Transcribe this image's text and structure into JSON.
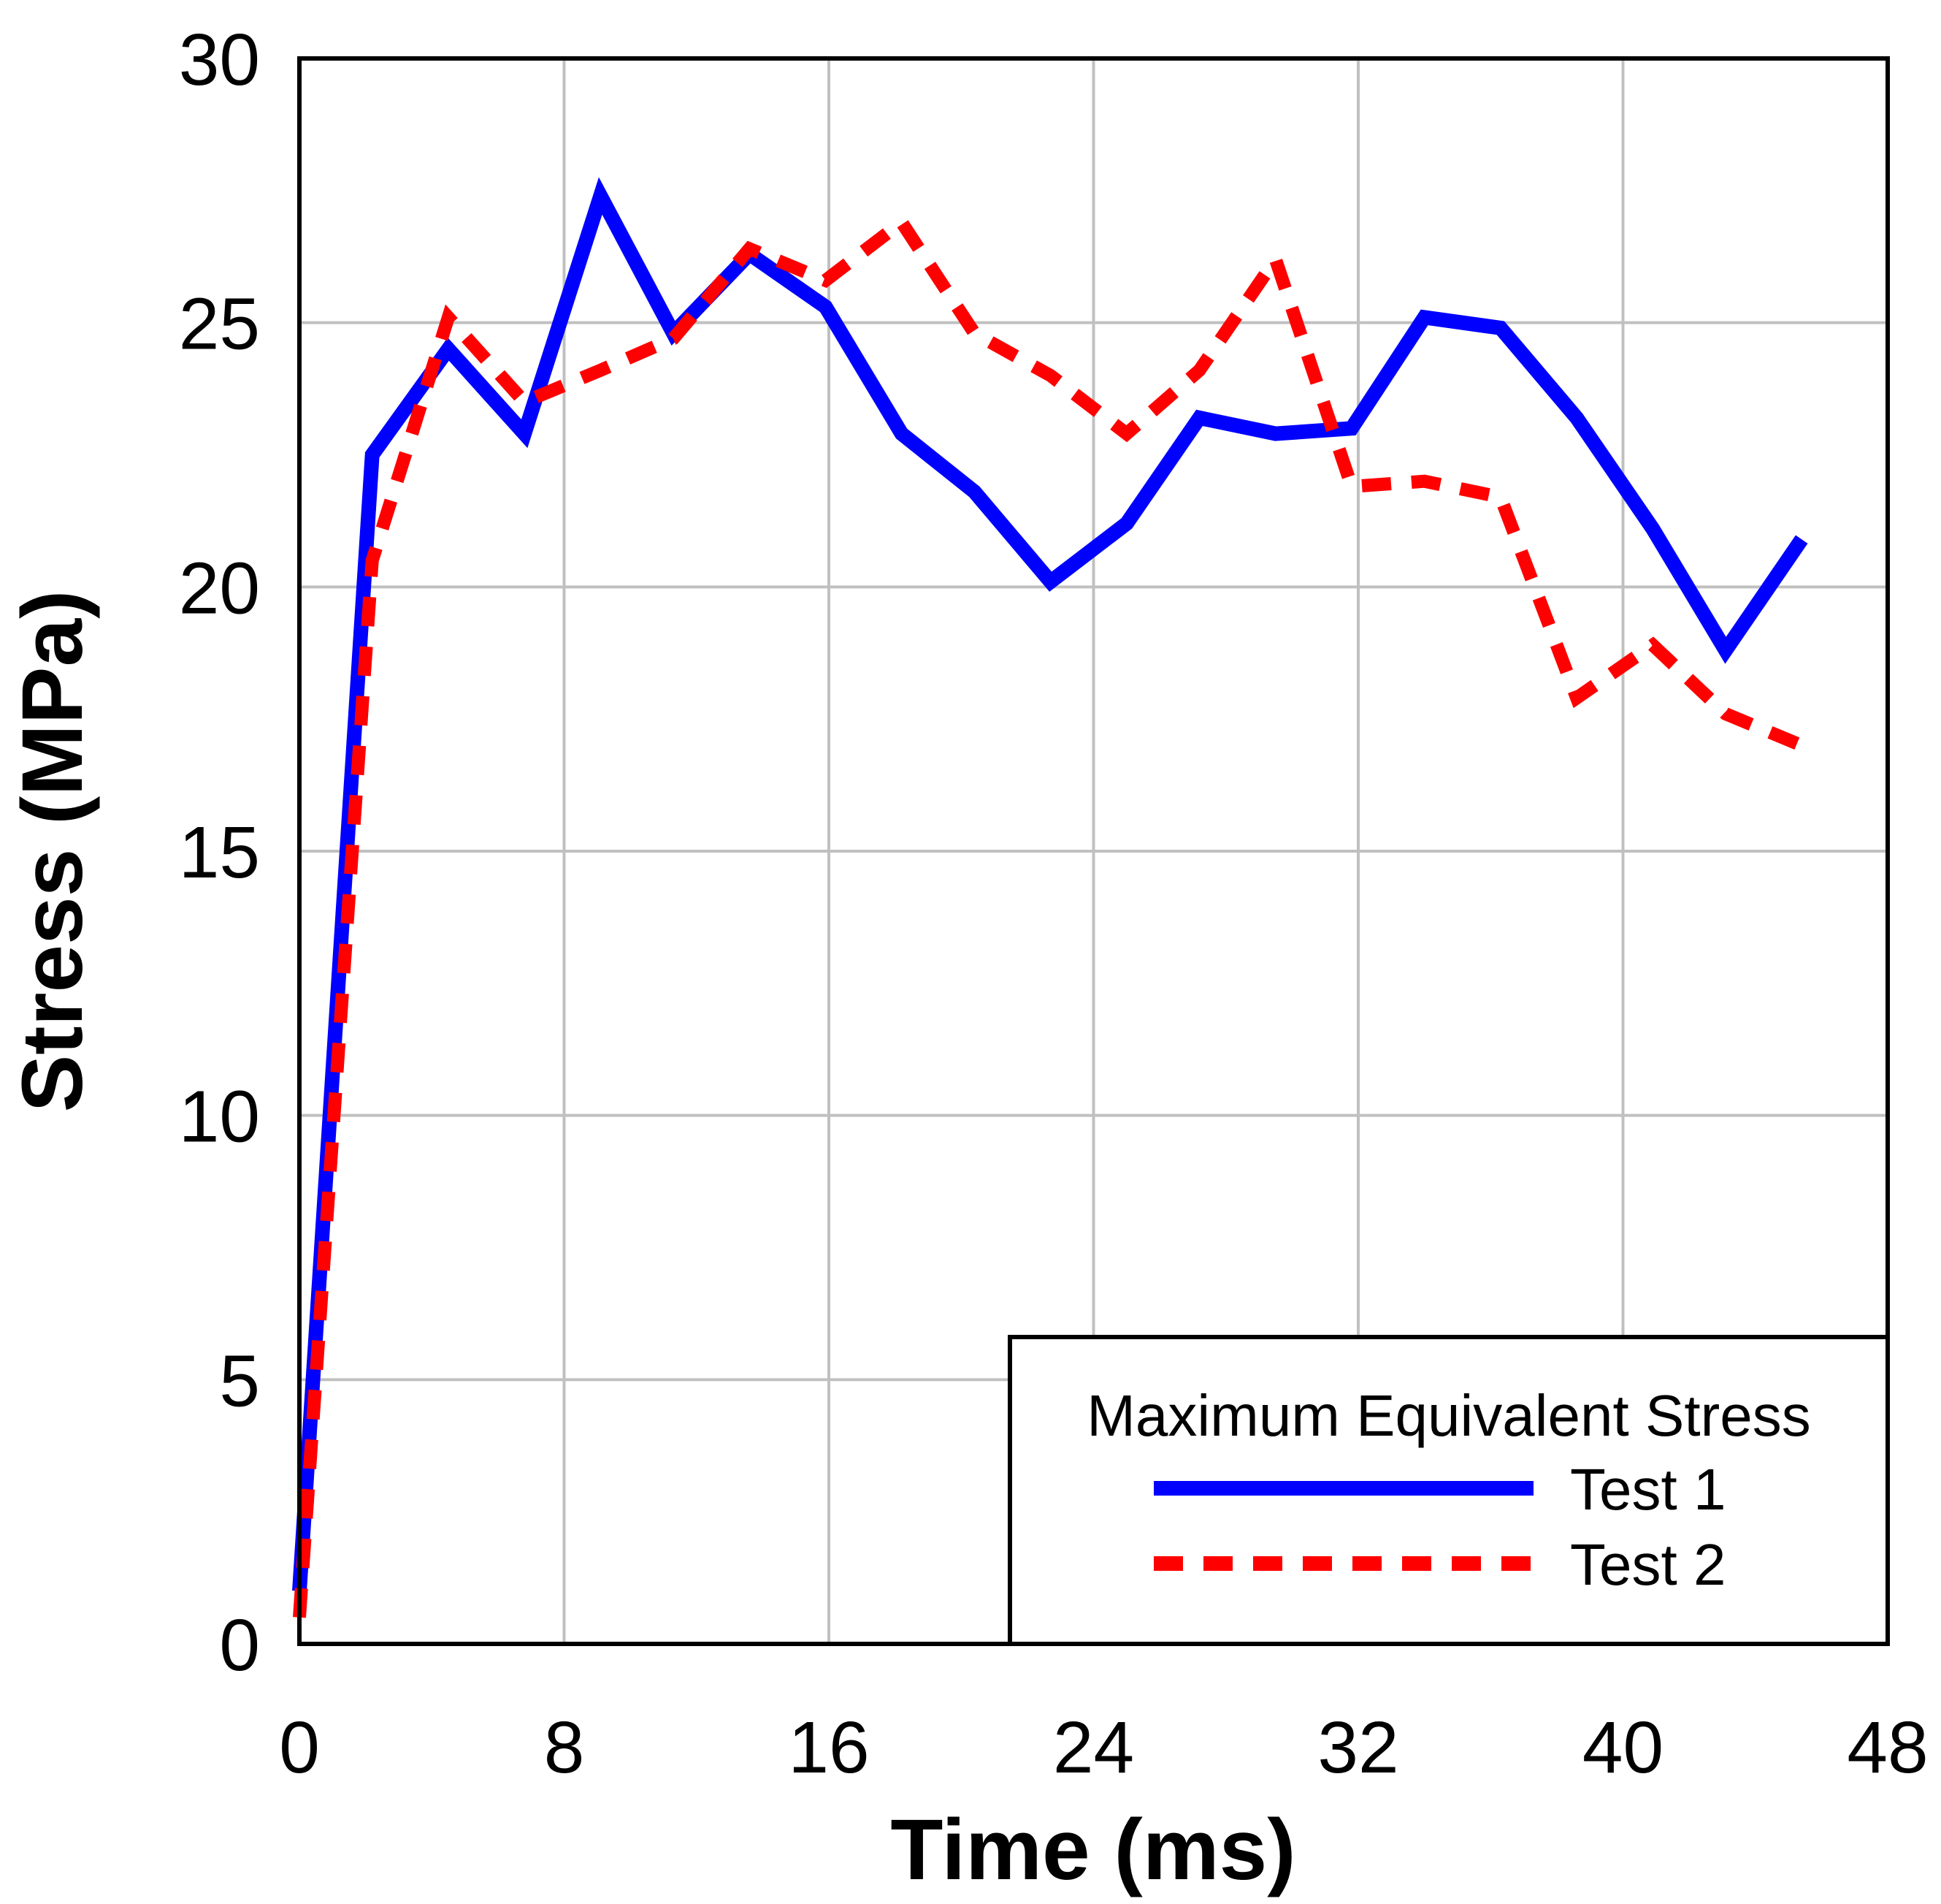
{
  "chart_data": {
    "type": "line",
    "title": "",
    "xlabel": "Time (ms)",
    "ylabel": "Stress (MPa)",
    "xlim": [
      0,
      48
    ],
    "ylim": [
      0,
      30
    ],
    "xticks": [
      0,
      8,
      16,
      24,
      32,
      40,
      48
    ],
    "yticks": [
      0,
      5,
      10,
      15,
      20,
      25,
      30
    ],
    "xtick_labels": [
      "0",
      "8",
      "16",
      "24",
      "32",
      "40",
      "48"
    ],
    "ytick_labels": [
      "0",
      "5",
      "10",
      "15",
      "20",
      "25",
      "30"
    ],
    "grid": true,
    "legend": {
      "title": "Maximum Equivalent Stress",
      "placement": "bottom-right"
    },
    "series": [
      {
        "name": "Test 1",
        "color": "#0000ff",
        "style": "solid",
        "x": [
          0.0,
          2.2,
          4.5,
          6.8,
          9.1,
          11.3,
          13.6,
          15.9,
          18.2,
          20.4,
          22.7,
          25.0,
          27.2,
          29.5,
          31.8,
          34.0,
          36.3,
          38.6,
          40.9,
          43.1,
          45.4
        ],
        "y": [
          1.0,
          22.5,
          24.5,
          22.9,
          27.4,
          24.8,
          26.3,
          25.3,
          22.9,
          21.8,
          20.1,
          21.2,
          23.2,
          22.9,
          23.0,
          25.1,
          24.9,
          23.2,
          21.1,
          18.8,
          20.9
        ]
      },
      {
        "name": "Test 2",
        "color": "#ff0000",
        "style": "dashed",
        "x": [
          0.0,
          2.2,
          4.5,
          6.8,
          9.1,
          11.3,
          13.6,
          15.9,
          18.2,
          20.4,
          22.7,
          25.0,
          27.2,
          29.5,
          31.8,
          34.0,
          36.3,
          38.6,
          40.9,
          43.1,
          45.4
        ],
        "y": [
          0.5,
          20.5,
          25.1,
          23.5,
          24.1,
          24.7,
          26.4,
          25.8,
          26.9,
          24.8,
          24.0,
          22.9,
          24.1,
          26.2,
          21.9,
          22.0,
          21.7,
          17.9,
          18.9,
          17.6,
          17.0
        ]
      }
    ]
  }
}
